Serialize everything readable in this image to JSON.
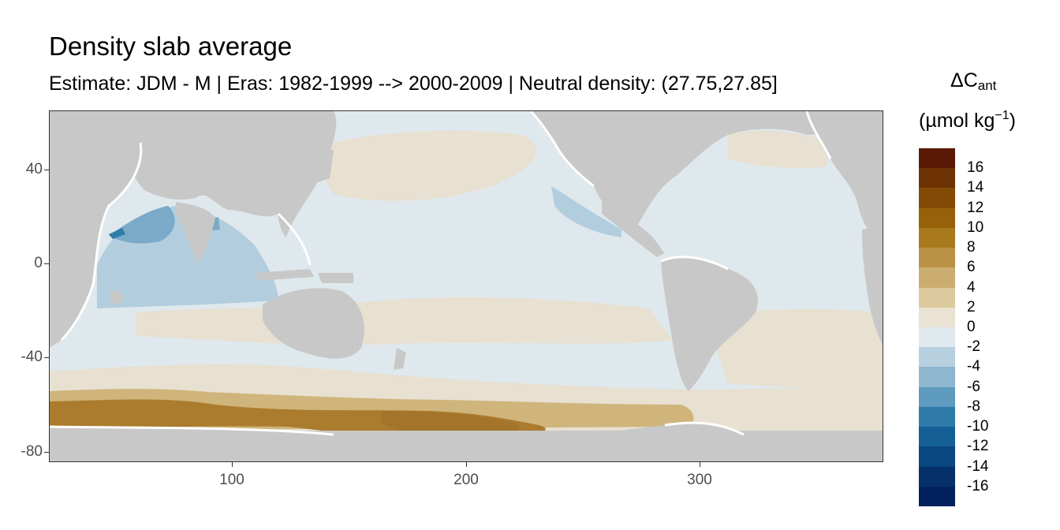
{
  "title": "Density slab average",
  "subtitle": "Estimate: JDM - M | Eras: 1982-1999 --> 2000-2009 | Neutral density: (27.75,27.85]",
  "legend": {
    "title_symbol": "ΔC",
    "title_subscript": "ant",
    "unit_main": "(µmol kg",
    "unit_sup": "−1",
    "unit_close": ")",
    "labels": [
      "16",
      "14",
      "12",
      "10",
      "8",
      "6",
      "4",
      "2",
      "0",
      "-2",
      "-4",
      "-6",
      "-8",
      "-10",
      "-12",
      "-14",
      "-16"
    ],
    "colors": [
      "#5a1a05",
      "#6e3304",
      "#834a06",
      "#976109",
      "#a9791e",
      "#ba9145",
      "#cbad72",
      "#dcca9e",
      "#eae2d2",
      "#e0e9ee",
      "#b7d0df",
      "#8db6cf",
      "#5e9bbf",
      "#2f7cab",
      "#145f96",
      "#0a4680",
      "#05306a",
      "#02215c"
    ]
  },
  "axes": {
    "x_ticks": [
      "100",
      "200",
      "300"
    ],
    "y_ticks": [
      "40",
      "0",
      "-40",
      "-80"
    ]
  },
  "colors": {
    "land": "#c8c8c8",
    "panel_border": "#333333",
    "neutral": "#dfe8ed",
    "light_brown": "#e8e0d0",
    "medium_brown": "#cfb57c",
    "dark_brown": "#ab7c2e",
    "light_blue": "#b2cede",
    "mid_blue": "#7aaac8",
    "deep_blue": "#2f7cab"
  }
}
